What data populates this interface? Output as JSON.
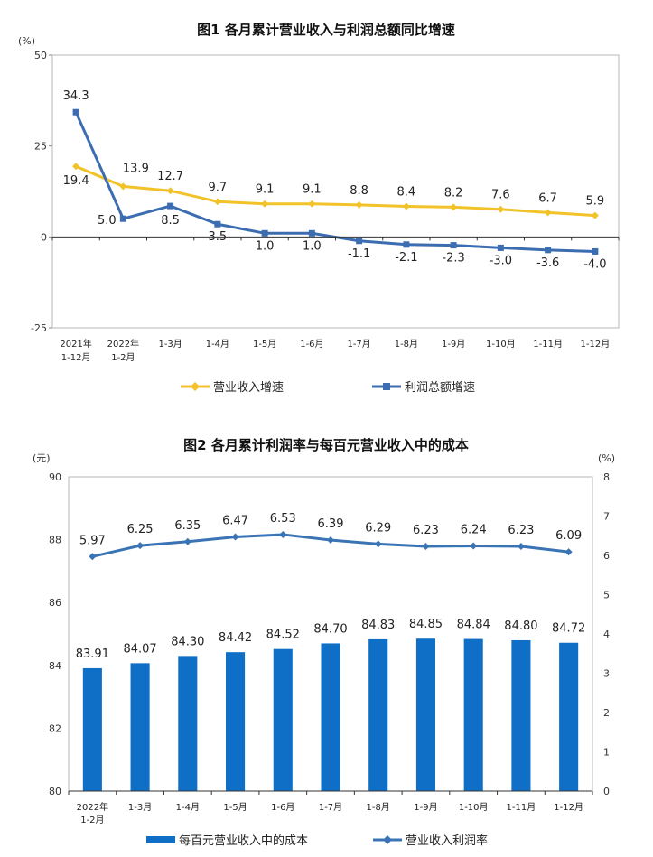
{
  "colors": {
    "revenue_line": "#f2c229",
    "profit_line": "#3b6db0",
    "bar": "#0f6fc6",
    "rate_line": "#3a74b5"
  },
  "chart_data": [
    {
      "type": "line",
      "title": "图1  各月累计营业收入与利润总额同比增速",
      "unit": "(%)",
      "ylim": [
        -25,
        50
      ],
      "yticks": [
        "50",
        "25",
        "0",
        "-25"
      ],
      "categories": [
        [
          "2021年",
          "1-12月"
        ],
        [
          "2022年",
          "1-2月"
        ],
        [
          "1-3月"
        ],
        [
          "1-4月"
        ],
        [
          "1-5月"
        ],
        [
          "1-6月"
        ],
        [
          "1-7月"
        ],
        [
          "1-8月"
        ],
        [
          "1-9月"
        ],
        [
          "1-10月"
        ],
        [
          "1-11月"
        ],
        [
          "1-12月"
        ]
      ],
      "series": [
        {
          "name": "营业收入增速",
          "values": [
            19.4,
            13.9,
            12.7,
            9.7,
            9.1,
            9.1,
            8.8,
            8.4,
            8.2,
            7.6,
            6.7,
            5.9
          ],
          "labels": [
            "19.4",
            "13.9",
            "12.7",
            "9.7",
            "9.1",
            "9.1",
            "8.8",
            "8.4",
            "8.2",
            "7.6",
            "6.7",
            "5.9"
          ]
        },
        {
          "name": "利润总额增速",
          "values": [
            34.3,
            5.0,
            8.5,
            3.5,
            1.0,
            1.0,
            -1.1,
            -2.1,
            -2.3,
            -3.0,
            -3.6,
            -4.0
          ],
          "labels": [
            "34.3",
            "5.0",
            "8.5",
            "3.5",
            "1.0",
            "1.0",
            "-1.1",
            "-2.1",
            "-2.3",
            "-3.0",
            "-3.6",
            "-4.0"
          ]
        }
      ],
      "legend_position": "bottom",
      "grid": false
    },
    {
      "type": "bar+line",
      "title": "图2  各月累计利润率与每百元营业收入中的成本",
      "left_unit": "(元)",
      "right_unit": "(%)",
      "ylim_left": [
        80,
        90
      ],
      "yticks_left": [
        "90",
        "88",
        "86",
        "84",
        "82",
        "80"
      ],
      "ylim_right": [
        0,
        8
      ],
      "yticks_right": [
        "8",
        "7",
        "6",
        "5",
        "4",
        "3",
        "2",
        "1",
        "0"
      ],
      "categories": [
        [
          "2022年",
          "1-2月"
        ],
        [
          "1-3月"
        ],
        [
          "1-4月"
        ],
        [
          "1-5月"
        ],
        [
          "1-6月"
        ],
        [
          "1-7月"
        ],
        [
          "1-8月"
        ],
        [
          "1-9月"
        ],
        [
          "1-10月"
        ],
        [
          "1-11月"
        ],
        [
          "1-12月"
        ]
      ],
      "series": [
        {
          "name": "每百元营业收入中的成本",
          "kind": "bar",
          "axis": "left",
          "values": [
            83.91,
            84.07,
            84.3,
            84.42,
            84.52,
            84.7,
            84.83,
            84.85,
            84.84,
            84.8,
            84.72
          ],
          "labels": [
            "83.91",
            "84.07",
            "84.30",
            "84.42",
            "84.52",
            "84.70",
            "84.83",
            "84.85",
            "84.84",
            "84.80",
            "84.72"
          ]
        },
        {
          "name": "营业收入利润率",
          "kind": "line",
          "axis": "right",
          "values": [
            5.97,
            6.25,
            6.35,
            6.47,
            6.53,
            6.39,
            6.29,
            6.23,
            6.24,
            6.23,
            6.09
          ],
          "labels": [
            "5.97",
            "6.25",
            "6.35",
            "6.47",
            "6.53",
            "6.39",
            "6.29",
            "6.23",
            "6.24",
            "6.23",
            "6.09"
          ]
        }
      ],
      "legend_position": "bottom",
      "grid": false
    }
  ]
}
